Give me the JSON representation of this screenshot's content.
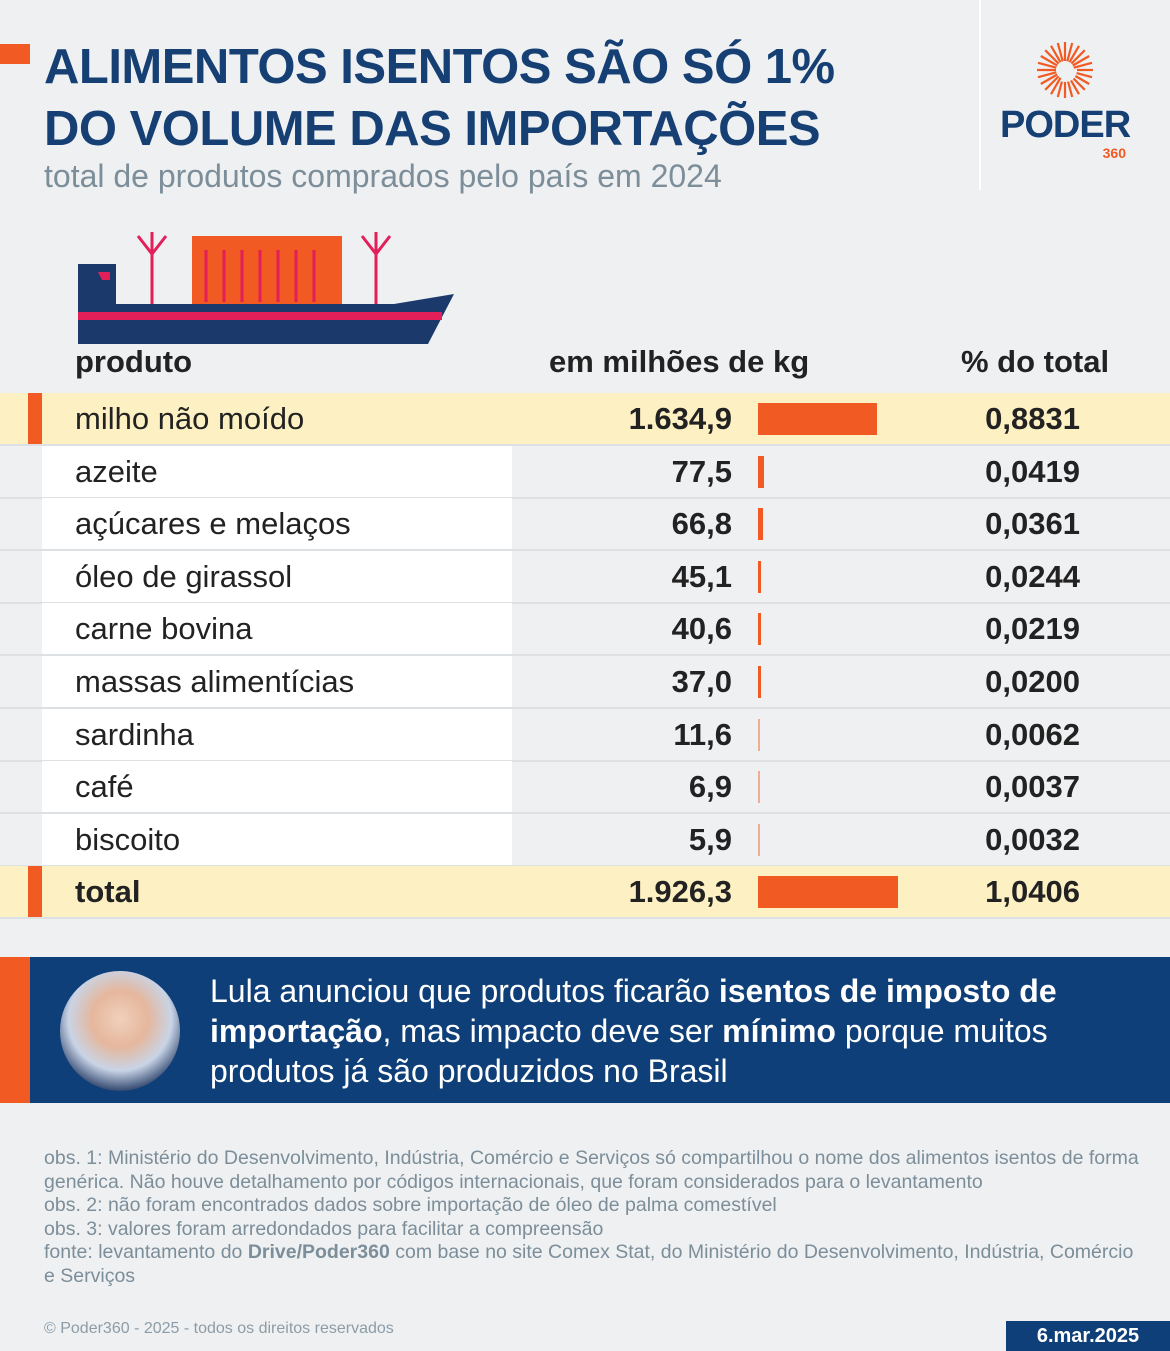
{
  "header": {
    "title_line1": "ALIMENTOS ISENTOS SÃO SÓ 1%",
    "title_line2": "DO VOLUME DAS IMPORTAÇÕES",
    "subtitle": "total de produtos comprados pelo país em 2024"
  },
  "logo": {
    "name": "PODER",
    "number": "360"
  },
  "colors": {
    "accent": "#f15a22",
    "brand_blue": "#0f3f78",
    "highlight": "#fdf0c2"
  },
  "chart_data": {
    "type": "table",
    "columns": [
      "produto",
      "em milhões de kg",
      "% do total"
    ],
    "rows": [
      {
        "produto": "milho não moído",
        "kg": "1.634,9",
        "value": 1634.9,
        "pct": "0,8831",
        "highlight": true
      },
      {
        "produto": "azeite",
        "kg": "77,5",
        "value": 77.5,
        "pct": "0,0419"
      },
      {
        "produto": "açúcares e melaços",
        "kg": "66,8",
        "value": 66.8,
        "pct": "0,0361"
      },
      {
        "produto": "óleo de girassol",
        "kg": "45,1",
        "value": 45.1,
        "pct": "0,0244"
      },
      {
        "produto": "carne bovina",
        "kg": "40,6",
        "value": 40.6,
        "pct": "0,0219"
      },
      {
        "produto": "massas alimentícias",
        "kg": "37,0",
        "value": 37.0,
        "pct": "0,0200"
      },
      {
        "produto": "sardinha",
        "kg": "11,6",
        "value": 11.6,
        "pct": "0,0062"
      },
      {
        "produto": "café",
        "kg": "6,9",
        "value": 6.9,
        "pct": "0,0037"
      },
      {
        "produto": "biscoito",
        "kg": "5,9",
        "value": 5.9,
        "pct": "0,0032"
      },
      {
        "produto": "total",
        "kg": "1.926,3",
        "value": 1926.3,
        "pct": "1,0406",
        "highlight": true,
        "total": true
      }
    ]
  },
  "banner": {
    "t1": "Lula anunciou que produtos ficarão ",
    "b1": "isentos de imposto de importação",
    "t2": ", mas impacto deve ser ",
    "b2": "mínimo",
    "t3": " porque muitos produtos já são produzidos no Brasil"
  },
  "notes": {
    "obs1": "obs. 1: Ministério do Desenvolvimento, Indústria, Comércio e Serviços só compartilhou o nome dos alimentos isentos de forma genérica. Não houve detalhamento por códigos internacionais, que foram considerados para o levantamento",
    "obs2": "obs. 2: não foram encontrados dados sobre importação de óleo de palma comestível",
    "obs3": "obs. 3: valores foram arredondados para facilitar a compreensão",
    "fonte_pre": "fonte: levantamento do ",
    "fonte_bold": "Drive/Poder360",
    "fonte_post": " com base no site Comex Stat, do Ministério do Desenvolvimento, Indústria, Comércio e Serviços"
  },
  "footer": {
    "copyright": "© Poder360 - 2025 - todos os direitos reservados",
    "date": "6.mar.2025"
  }
}
